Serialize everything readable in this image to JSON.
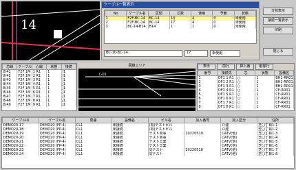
{
  "map": {
    "label": "14"
  },
  "dialog": {
    "title": "ケーブル一覧表示",
    "columns": [
      "No",
      "ケーブル名",
      "区間",
      "芯数",
      "使用",
      "予備",
      "状態"
    ],
    "rows": [
      [
        "1",
        "F2F-BC-14",
        "BC-14",
        "10",
        "4",
        "0",
        "未使用"
      ],
      [
        "2",
        "F2F-BC-14",
        "BC-14",
        "17",
        "4",
        "0",
        "未使用"
      ],
      [
        "3",
        "BC-14-B14",
        "B14",
        "1",
        "1",
        "0",
        "未使用"
      ]
    ],
    "input": "BC-10-BC-14",
    "input_num": "17",
    "input_state": "未使用",
    "buttons": [
      "分岐表示",
      "接続一覧表示",
      "印刷",
      "閉じる"
    ]
  },
  "left_table": {
    "columns": [
      "芯線",
      "ケーブル",
      "心線",
      "状態",
      "接続"
    ],
    "rows": [
      [
        "8/41",
        "F2F 1M",
        "1 R1",
        "1",
        "J1"
      ],
      [
        "8/42",
        "F2F 1M",
        "2 R1",
        "1",
        "J1"
      ],
      [
        "8/43",
        "F2F 1M",
        "3 R1",
        "1",
        "J1"
      ],
      [
        "8/44",
        "F2F 1M",
        "4 R1",
        "1",
        "J1"
      ],
      [
        "8/45",
        "F2F 1M",
        "5 R1",
        "1",
        "J1"
      ],
      [
        "8/46",
        "F2F 1M",
        "6 R1",
        "1",
        "J1"
      ],
      [
        "8/47",
        "F2F 1M",
        "7 R1",
        "1",
        "J1"
      ],
      [
        "8/48",
        "F2F 1M",
        "8 R1",
        "1",
        "J1"
      ],
      [
        "8/49",
        "F2F 1M",
        "9 R1",
        "1",
        "J1"
      ]
    ]
  },
  "diagram": {
    "title": "回線エリア",
    "label": "L-01"
  },
  "right_table": {
    "tabs": [
      "表示",
      "前行",
      "挿入番",
      "削除行"
    ],
    "columns": [
      "番号",
      "接続先",
      "芯",
      "状態",
      "設備名"
    ],
    "rows": [
      [
        "1",
        "OF1 1 R1",
        "○",
        "1",
        "BH1-RR01"
      ],
      [
        "2",
        "OF1 2 R1",
        "○",
        "1",
        "BH1-RR01"
      ],
      [
        "3",
        "OF1 3 R1",
        "○",
        "1",
        "BH1-RR01"
      ],
      [
        "4",
        "OF1 4 R1",
        "○",
        "1",
        "CF-RR01"
      ],
      [
        "5",
        "OF1 5 R1",
        "○",
        "1",
        "CF-RR01"
      ],
      [
        "6",
        "OF1 6 R1",
        "○",
        "1",
        "CF-RR01"
      ],
      [
        "7",
        "OF1 7 R1",
        "○",
        "1",
        "CF-RR01"
      ],
      [
        "8",
        "OF1 8 R1",
        "○",
        "1",
        "CF-RR01"
      ]
    ]
  },
  "bottom_table": {
    "columns": [
      "ケーブルID",
      "ケーブル名",
      "局舎",
      "設備名",
      "ビル名",
      "加入番号",
      "加入区分",
      "住所"
    ],
    "rows": [
      [
        "DEMO20-17",
        "DEMO20 (FP-4)",
        "CL1",
        "未接続",
        "(有)テストビル",
        "",
        "戸建",
        "芝〇丁目1-1"
      ],
      [
        "DEMO20-18",
        "DEMO20 (FP-4)",
        "CL1",
        "未接続",
        "(有)テストビル",
        "",
        "戸建",
        "芝〇丁目1-2"
      ],
      [
        "DEMO20-19",
        "DEMO20 (FP-4)",
        "CL1",
        "未接続",
        "テスト商事",
        "20220519",
        "CATV(他)",
        "芝〇丁目1-3"
      ],
      [
        "DEMO20-20",
        "DEMO20 (FP-4)",
        "CL1",
        "未接続",
        "テスト商事",
        "",
        "CATV(他)",
        "芝〇丁目1-4"
      ],
      [
        "DEMO20-21",
        "DEMO20 (FP-4)",
        "CL1",
        "未接続",
        "テスト工業",
        "",
        "CATV(他)",
        "芝〇丁目1-5"
      ],
      [
        "DEMO20-22",
        "DEMO20 (FP-4)",
        "CL1",
        "未接続",
        "テスト工業",
        "",
        "CATV(他)",
        "芝〇丁目1-6"
      ],
      [
        "DEMO20-23",
        "DEMO20 (FP-4)",
        "CL1",
        "未接続",
        "同テスト",
        "20220518",
        "CATV(他)",
        "芝〇丁目1-7"
      ],
      [
        "DEMO20-24",
        "DEMO20 (FP-4)",
        "CL1",
        "未接続",
        "同テスト",
        "",
        "CATV(他)",
        "芝〇丁目1-8"
      ]
    ]
  }
}
